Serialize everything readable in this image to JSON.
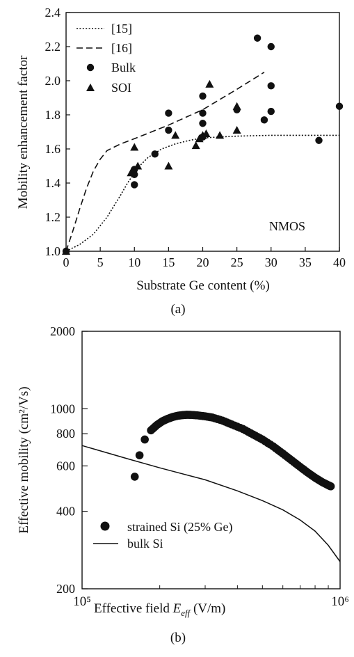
{
  "chart_data": [
    {
      "type": "scatter",
      "caption": "(a)",
      "xlabel": "Substrate Ge content (%)",
      "ylabel": "Mobility enhancement factor",
      "xlim": [
        0,
        40
      ],
      "ylim": [
        1.0,
        2.4
      ],
      "xticks": [
        0,
        5,
        10,
        15,
        20,
        25,
        30,
        35,
        40
      ],
      "yticks": [
        1.0,
        1.2,
        1.4,
        1.6,
        1.8,
        2.0,
        2.2,
        2.4
      ],
      "xtick_labels": [
        "0",
        "5",
        "10",
        "15",
        "20",
        "25",
        "30",
        "35",
        "40"
      ],
      "ytick_labels": [
        "1.0",
        "1.2",
        "1.4",
        "1.6",
        "1.8",
        "2.0",
        "2.2",
        "2.4"
      ],
      "annotation": "NMOS",
      "legend_position": "top-left",
      "grid": false,
      "series": [
        {
          "name": "[15]",
          "style": "dotted-line",
          "x": [
            0,
            2,
            4,
            6,
            8,
            9,
            10,
            11,
            12,
            14,
            16,
            18,
            20,
            25,
            30,
            35,
            40
          ],
          "y": [
            1.0,
            1.04,
            1.1,
            1.2,
            1.33,
            1.4,
            1.46,
            1.51,
            1.55,
            1.6,
            1.63,
            1.65,
            1.665,
            1.675,
            1.68,
            1.68,
            1.68
          ]
        },
        {
          "name": "[16]",
          "style": "dashed-line",
          "x": [
            0,
            1,
            2,
            3,
            4,
            5,
            6,
            7,
            8,
            10,
            15,
            20,
            25,
            29
          ],
          "y": [
            1.0,
            1.12,
            1.25,
            1.37,
            1.47,
            1.54,
            1.59,
            1.61,
            1.63,
            1.66,
            1.74,
            1.83,
            1.95,
            2.05
          ]
        },
        {
          "name": "Bulk",
          "style": "circle-marker",
          "x": [
            0,
            10,
            10,
            10,
            13,
            15,
            15,
            20,
            20,
            20,
            20,
            25,
            28,
            29,
            30,
            30,
            30,
            37,
            40
          ],
          "y": [
            1.0,
            1.39,
            1.45,
            1.48,
            1.57,
            1.81,
            1.71,
            1.91,
            1.81,
            1.75,
            1.67,
            1.83,
            2.25,
            1.77,
            2.2,
            1.97,
            1.82,
            1.65,
            1.85
          ]
        },
        {
          "name": "SOI",
          "style": "triangle-marker",
          "x": [
            0,
            9.5,
            10,
            10.5,
            15,
            16,
            19,
            19.5,
            20,
            21,
            22.5,
            25,
            25,
            20.5
          ],
          "y": [
            1.0,
            1.46,
            1.61,
            1.5,
            1.5,
            1.68,
            1.62,
            1.66,
            1.68,
            1.98,
            1.68,
            1.85,
            1.71,
            1.69
          ]
        }
      ]
    },
    {
      "type": "line",
      "caption": "(b)",
      "xlabel_main": "Effective field ",
      "xlabel_var": "E",
      "xlabel_sub": "eff",
      "xlabel_unit": " (V/m)",
      "ylabel": "Effective mobility  (cm²/Vs)",
      "x_scale": "log",
      "y_scale": "log",
      "xlim": [
        100000,
        1000000
      ],
      "ylim": [
        200,
        2000
      ],
      "xtick_labels": [
        "10⁵",
        "10⁶"
      ],
      "yticks": [
        200,
        400,
        600,
        800,
        1000,
        2000
      ],
      "ytick_labels": [
        "200",
        "400",
        "600",
        "800",
        "1000",
        "2000"
      ],
      "legend_position": "bottom-left",
      "grid": false,
      "series": [
        {
          "name": "strained Si (25% Ge)",
          "style": "circle-marker",
          "x": [
            160000,
            167000,
            175000,
            185000,
            195000,
            205000,
            215000,
            225000,
            235000,
            245000,
            255000,
            265000,
            280000,
            300000,
            320000,
            350000,
            380000,
            420000,
            460000,
            500000,
            550000,
            600000,
            650000,
            700000,
            750000,
            800000,
            850000,
            900000,
            920000
          ],
          "y": [
            545,
            660,
            760,
            825,
            865,
            895,
            915,
            930,
            940,
            945,
            948,
            947,
            943,
            935,
            925,
            900,
            870,
            835,
            795,
            760,
            715,
            670,
            630,
            595,
            565,
            540,
            520,
            505,
            500
          ]
        },
        {
          "name": "bulk Si",
          "style": "solid-line",
          "x": [
            100000,
            150000,
            200000,
            300000,
            400000,
            500000,
            600000,
            700000,
            800000,
            900000,
            1000000
          ],
          "y": [
            720,
            640,
            590,
            530,
            480,
            440,
            405,
            370,
            335,
            295,
            255
          ]
        }
      ]
    }
  ]
}
